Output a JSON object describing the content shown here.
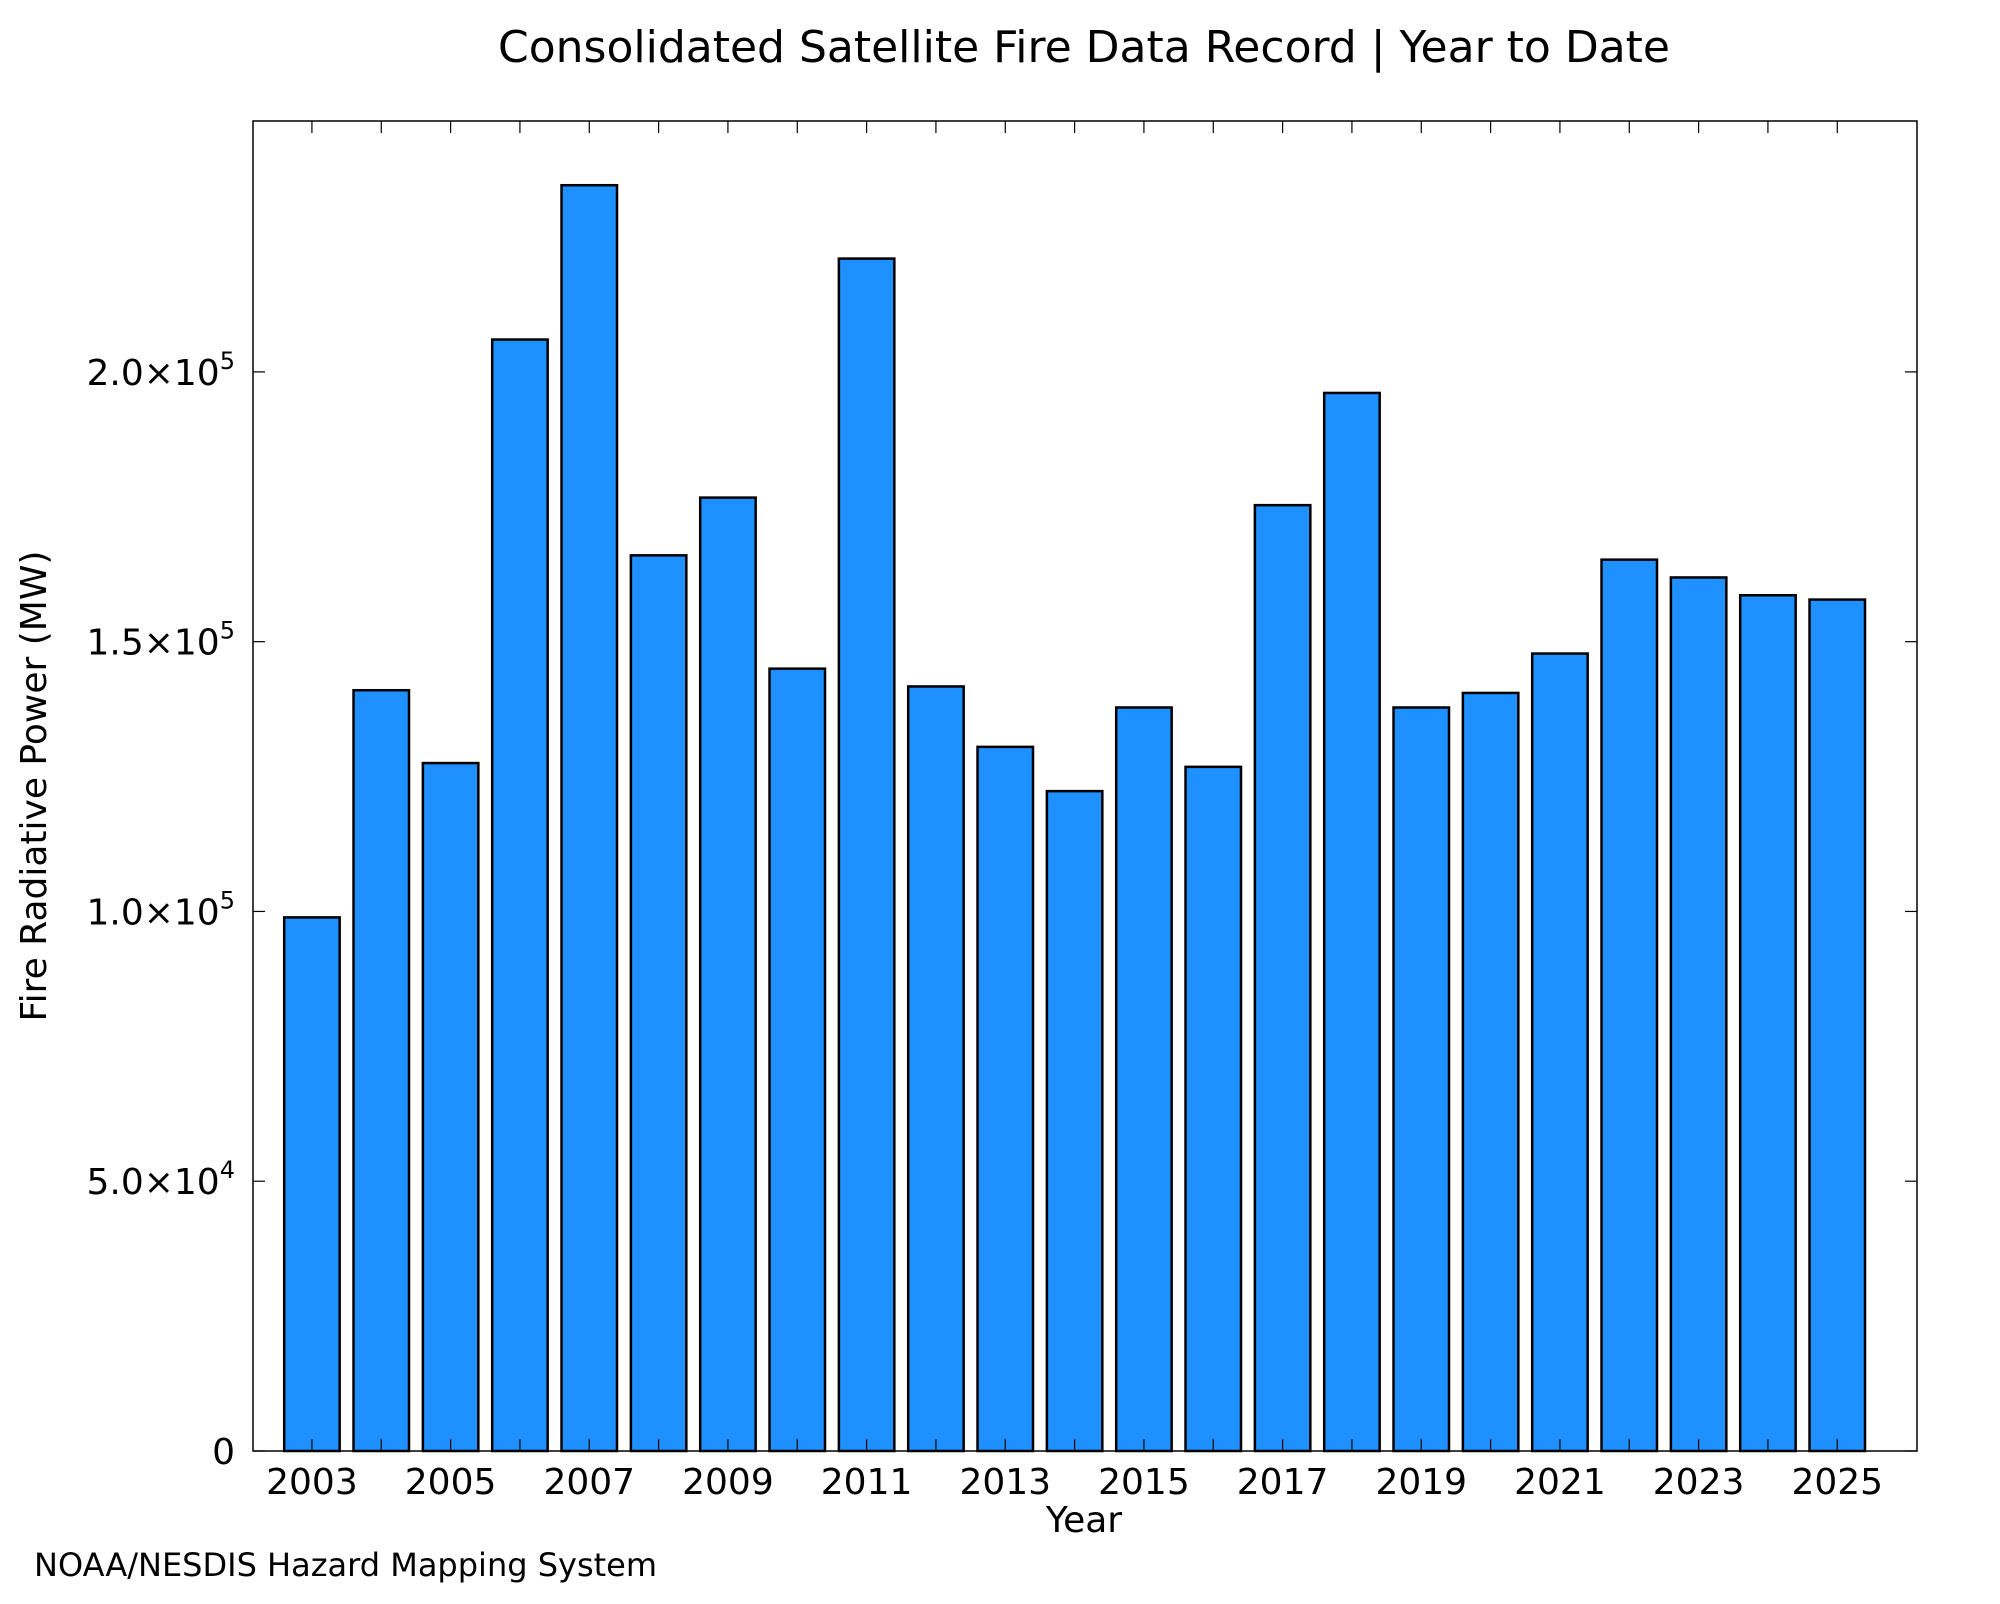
{
  "chart_data": {
    "type": "bar",
    "title": "Consolidated Satellite Fire Data Record | Year to Date",
    "xlabel": "Year",
    "ylabel": "Fire Radiative Power (MW)",
    "footer": "NOAA/NESDIS Hazard Mapping System",
    "ylim": [
      0,
      246500
    ],
    "xlim": [
      2002.15,
      2026.15
    ],
    "grid": false,
    "bar_color": "#1e90ff",
    "bar_edge_color": "#000000",
    "footer_color": "#808080",
    "x_tick_values": [
      2003,
      2005,
      2007,
      2009,
      2011,
      2013,
      2015,
      2017,
      2019,
      2021,
      2023,
      2025
    ],
    "x_tick_labels": [
      "2003",
      "2005",
      "2007",
      "2009",
      "2011",
      "2013",
      "2015",
      "2017",
      "2019",
      "2021",
      "2023",
      "2025"
    ],
    "x_minor_tick_values": [
      2004,
      2006,
      2008,
      2010,
      2012,
      2014,
      2016,
      2018,
      2020,
      2022,
      2024
    ],
    "y_ticks": [
      {
        "value": 0,
        "mantissa": "0",
        "exponent": ""
      },
      {
        "value": 50000,
        "mantissa": "5.0×10",
        "exponent": "4"
      },
      {
        "value": 100000,
        "mantissa": "1.0×10",
        "exponent": "5"
      },
      {
        "value": 150000,
        "mantissa": "1.5×10",
        "exponent": "5"
      },
      {
        "value": 200000,
        "mantissa": "2.0×10",
        "exponent": "5"
      }
    ],
    "categories": [
      2003,
      2004,
      2005,
      2006,
      2007,
      2008,
      2009,
      2010,
      2011,
      2012,
      2013,
      2014,
      2015,
      2016,
      2017,
      2018,
      2019,
      2020,
      2021,
      2022,
      2023,
      2024,
      2025
    ],
    "values": [
      98900,
      141000,
      127500,
      206000,
      234600,
      166000,
      176700,
      145000,
      221000,
      141700,
      130500,
      122300,
      137800,
      126800,
      175300,
      196100,
      137800,
      140500,
      147800,
      165200,
      161900,
      158600,
      157800
    ]
  }
}
